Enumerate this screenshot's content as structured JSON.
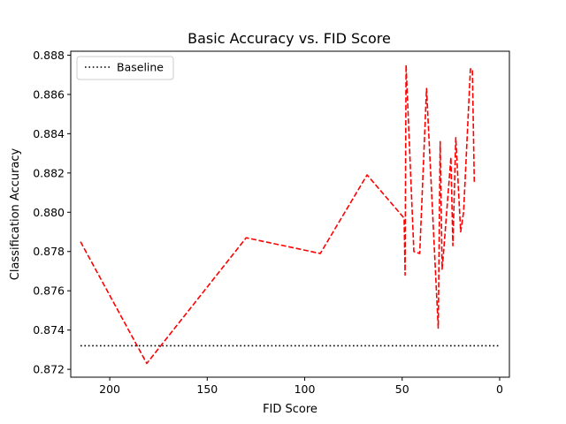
{
  "chart_data": {
    "type": "line",
    "title": "Basic Accuracy vs. FID Score",
    "xlabel": "FID Score",
    "ylabel": "Classification Accuracy",
    "xlim": [
      220,
      -5
    ],
    "ylim": [
      0.8716,
      0.8882
    ],
    "x_inverted": true,
    "grid": false,
    "legend_position": "top-left",
    "x_ticks": [
      200,
      150,
      100,
      50,
      0
    ],
    "x_tick_labels": [
      "200",
      "150",
      "100",
      "50",
      "0"
    ],
    "y_ticks": [
      0.872,
      0.874,
      0.876,
      0.878,
      0.88,
      0.882,
      0.884,
      0.886,
      0.888
    ],
    "y_tick_labels": [
      "0.872",
      "0.874",
      "0.876",
      "0.878",
      "0.880",
      "0.882",
      "0.884",
      "0.886",
      "0.888"
    ],
    "series": [
      {
        "name": "",
        "style": "dashed",
        "color": "#ff0000",
        "x": [
          215,
          181,
          130,
          92,
          68,
          49,
          48.5,
          48,
          44,
          41,
          37.5,
          31.5,
          30.5,
          29.5,
          28.5,
          25,
          24,
          22.5,
          20,
          18.5,
          15,
          14,
          13
        ],
        "y": [
          0.8785,
          0.8723,
          0.8787,
          0.8779,
          0.8819,
          0.8797,
          0.8768,
          0.8875,
          0.878,
          0.8779,
          0.8863,
          0.8741,
          0.8836,
          0.8771,
          0.8783,
          0.8828,
          0.8783,
          0.8838,
          0.879,
          0.88,
          0.8873,
          0.8873,
          0.8815
        ]
      },
      {
        "name": "Baseline",
        "style": "dotted",
        "color": "#000000",
        "x": [
          215,
          0
        ],
        "y": [
          0.8732,
          0.8732
        ]
      }
    ]
  }
}
